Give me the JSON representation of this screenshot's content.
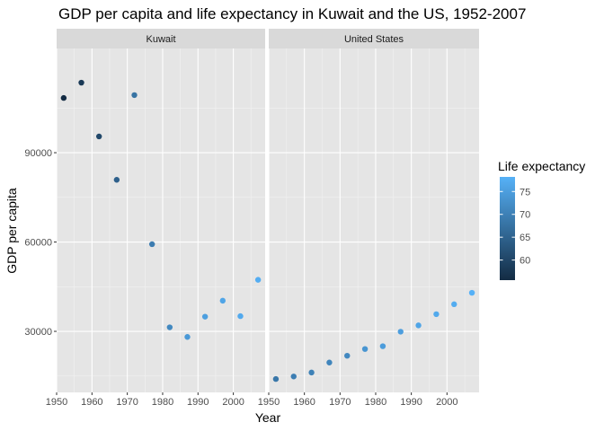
{
  "chart_data": {
    "type": "scatter",
    "title": "GDP per capita and life expectancy in Kuwait and the US, 1952-2007",
    "xlabel": "Year",
    "ylabel": "GDP per capita",
    "xlim": [
      1950,
      2009
    ],
    "ylim": [
      9500,
      125000
    ],
    "x_ticks": [
      1950,
      1960,
      1970,
      1980,
      1990,
      2000
    ],
    "y_ticks": [
      30000,
      60000,
      90000
    ],
    "y_tick_labels": [
      "30000",
      "60000",
      "90000"
    ],
    "grid": true,
    "panel_background": "#e5e5e5",
    "strip_background": "#d9d9d9",
    "facets": [
      {
        "name": "Kuwait",
        "points": [
          {
            "x": 1952,
            "y": 108382,
            "life": 55.6
          },
          {
            "x": 1957,
            "y": 113523,
            "life": 58.0
          },
          {
            "x": 1962,
            "y": 95458,
            "life": 60.5
          },
          {
            "x": 1967,
            "y": 80895,
            "life": 64.6
          },
          {
            "x": 1972,
            "y": 109348,
            "life": 67.7
          },
          {
            "x": 1977,
            "y": 59265,
            "life": 69.3
          },
          {
            "x": 1982,
            "y": 31354,
            "life": 71.3
          },
          {
            "x": 1987,
            "y": 28118,
            "life": 74.2
          },
          {
            "x": 1992,
            "y": 34933,
            "life": 75.2
          },
          {
            "x": 1997,
            "y": 40301,
            "life": 76.2
          },
          {
            "x": 2002,
            "y": 35110,
            "life": 76.9
          },
          {
            "x": 2007,
            "y": 47307,
            "life": 77.6
          }
        ]
      },
      {
        "name": "United States",
        "points": [
          {
            "x": 1952,
            "y": 13990,
            "life": 68.4
          },
          {
            "x": 1957,
            "y": 14847,
            "life": 69.5
          },
          {
            "x": 1962,
            "y": 16173,
            "life": 70.2
          },
          {
            "x": 1967,
            "y": 19530,
            "life": 70.8
          },
          {
            "x": 1972,
            "y": 21806,
            "life": 71.3
          },
          {
            "x": 1977,
            "y": 24073,
            "life": 73.4
          },
          {
            "x": 1982,
            "y": 25010,
            "life": 74.7
          },
          {
            "x": 1987,
            "y": 29884,
            "life": 75.0
          },
          {
            "x": 1992,
            "y": 32004,
            "life": 76.1
          },
          {
            "x": 1997,
            "y": 35767,
            "life": 76.8
          },
          {
            "x": 2002,
            "y": 39097,
            "life": 77.3
          },
          {
            "x": 2007,
            "y": 42952,
            "life": 78.2
          }
        ]
      }
    ],
    "legend": {
      "title": "Life expectancy",
      "placement": "right",
      "range": [
        55.6,
        78.2
      ],
      "breaks": [
        60,
        65,
        70,
        75
      ],
      "break_labels": [
        "60",
        "65",
        "70",
        "75"
      ],
      "low_color": "#132b43",
      "high_color": "#56b1f7"
    }
  }
}
